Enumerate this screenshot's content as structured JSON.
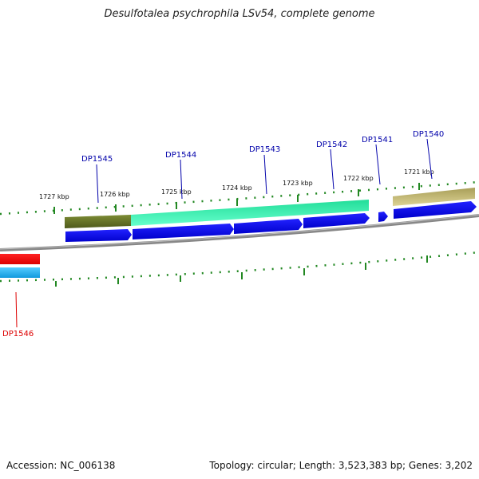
{
  "title": "Desulfotalea psychrophila LSv54, complete genome",
  "footer": {
    "accession": "Accession: NC_006138",
    "topology": "Topology: circular; Length: 3,523,383 bp; Genes: 3,202"
  },
  "colors": {
    "background": "#ffffff",
    "backbone": "#888888",
    "tick": "#228822",
    "gene_forward": "#0000ee",
    "gene_highlight": "#ee0000",
    "gene_highlight_lower": "#33bbee",
    "label_forward": "#0000aa",
    "label_highlight": "#dd0000",
    "feature_olive": "#6b7a2a",
    "feature_teal": "#33eeaa",
    "feature_khaki": "#c9bd78"
  },
  "ticks": [
    {
      "label": "1727 kbp"
    },
    {
      "label": "1726 kbp"
    },
    {
      "label": "1725 kbp"
    },
    {
      "label": "1724 kbp"
    },
    {
      "label": "1723 kbp"
    },
    {
      "label": "1722 kbp"
    },
    {
      "label": "1721 kbp"
    }
  ],
  "genes": [
    {
      "name": "DP1545",
      "strand": "forward"
    },
    {
      "name": "DP1544",
      "strand": "forward"
    },
    {
      "name": "DP1543",
      "strand": "forward"
    },
    {
      "name": "DP1542",
      "strand": "forward"
    },
    {
      "name": "DP1541",
      "strand": "forward"
    },
    {
      "name": "DP1540",
      "strand": "forward"
    },
    {
      "name": "DP1546",
      "strand": "highlight"
    }
  ]
}
